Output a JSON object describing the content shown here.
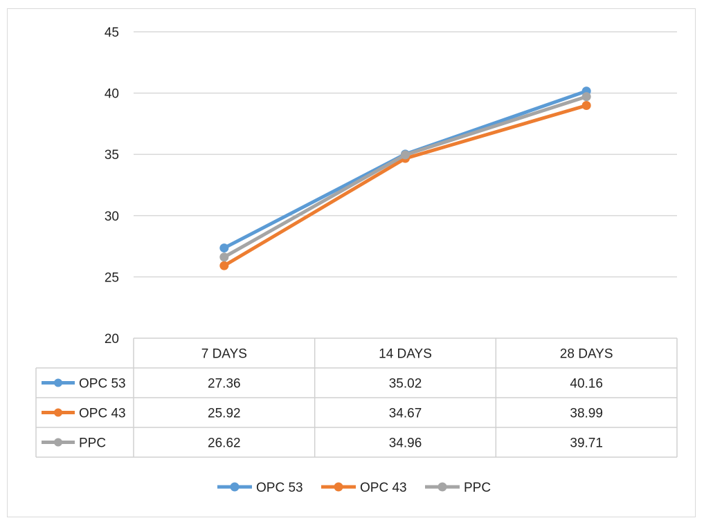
{
  "chart_data": {
    "type": "line",
    "title": "",
    "xlabel": "",
    "ylabel": "",
    "categories": [
      "7 DAYS",
      "14 DAYS",
      "28 DAYS"
    ],
    "ylim": [
      20,
      45
    ],
    "yticks": [
      20,
      25,
      30,
      35,
      40,
      45
    ],
    "grid": true,
    "legend": "bottom",
    "data_table": true,
    "series": [
      {
        "name": "OPC 53",
        "color": "#5b9bd5",
        "values": [
          27.36,
          35.02,
          40.16
        ],
        "labels": [
          "27.36",
          "35.02",
          "40.16"
        ]
      },
      {
        "name": "OPC 43",
        "color": "#ed7d31",
        "values": [
          25.92,
          34.67,
          38.99
        ],
        "labels": [
          "25.92",
          "34.67",
          "38.99"
        ]
      },
      {
        "name": "PPC",
        "color": "#a5a5a5",
        "values": [
          26.62,
          34.96,
          39.71
        ],
        "labels": [
          "26.62",
          "34.96",
          "39.71"
        ]
      }
    ]
  }
}
